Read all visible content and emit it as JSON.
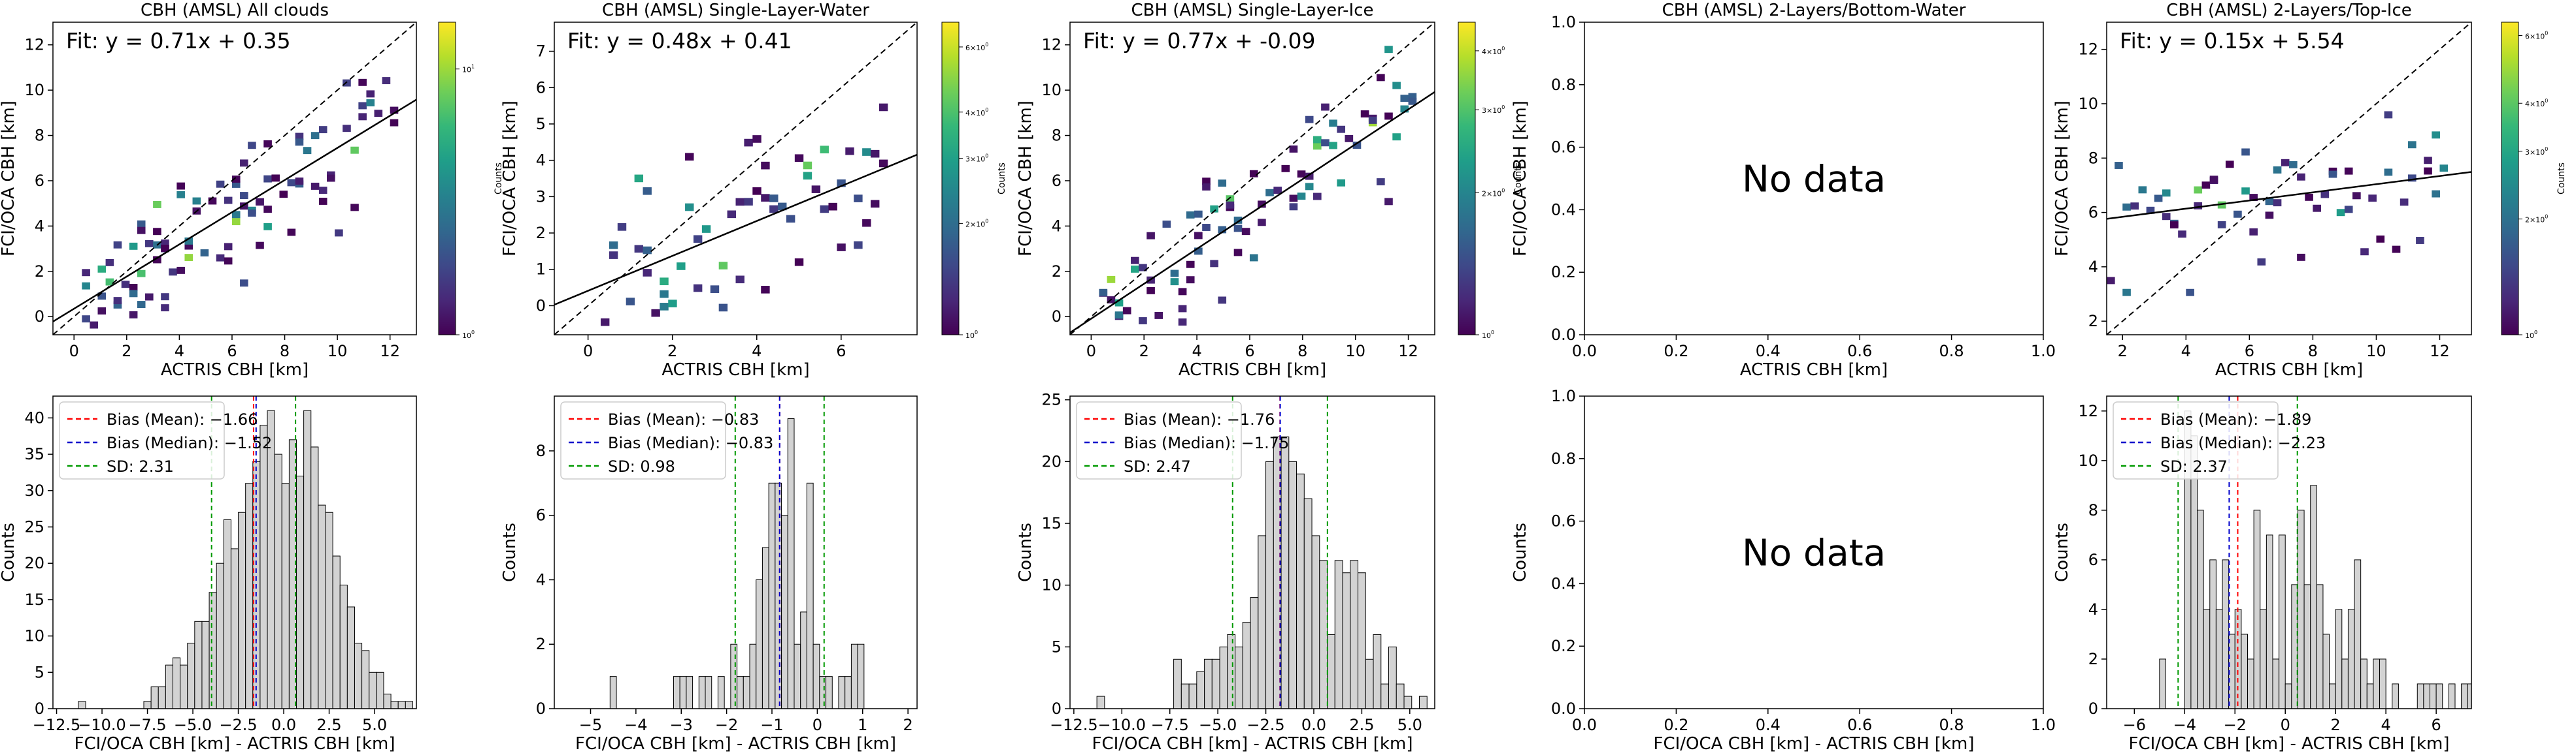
{
  "chart_data": [
    {
      "type": "heatmap",
      "title": "CBH (AMSL) All clouds",
      "xlabel": "ACTRIS CBH [km]",
      "ylabel": "FCI/OCA CBH [km]",
      "xlim": [
        -0.8,
        13.0
      ],
      "ylim": [
        -0.8,
        13.0
      ],
      "xticks": [
        0,
        2,
        4,
        6,
        8,
        10,
        12
      ],
      "yticks": [
        0,
        2,
        4,
        6,
        8,
        10,
        12
      ],
      "fit_label": "Fit: y = 0.71x + 0.35",
      "fit": {
        "slope": 0.71,
        "intercept": 0.35
      },
      "one_to_one_line": true,
      "colorbar": {
        "label": "Counts",
        "scale": "log",
        "min": 1,
        "max": 15,
        "tick_labels": [
          "10^0",
          "10^1"
        ],
        "tick_values": [
          1,
          10
        ]
      },
      "cells_density": 0.6,
      "cell_w": 0.3,
      "cell_h": 0.3,
      "seed": 11
    },
    {
      "type": "heatmap",
      "title": "CBH (AMSL) Single-Layer-Water",
      "xlabel": "ACTRIS CBH [km]",
      "ylabel": "FCI/OCA CBH [km]",
      "xlim": [
        -0.8,
        7.8
      ],
      "ylim": [
        -0.8,
        7.8
      ],
      "xticks": [
        0,
        2,
        4,
        6
      ],
      "yticks": [
        0,
        1,
        2,
        3,
        4,
        5,
        6,
        7
      ],
      "fit_label": "Fit: y = 0.48x + 0.41",
      "fit": {
        "slope": 0.48,
        "intercept": 0.41
      },
      "one_to_one_line": true,
      "colorbar": {
        "label": "Counts",
        "scale": "log",
        "min": 1,
        "max": 7,
        "tick_labels": [
          "10^0",
          "2×10^0",
          "3×10^0",
          "4×10^0",
          "6×10^0"
        ],
        "tick_values": [
          1,
          2,
          3,
          4,
          6
        ]
      },
      "cells_density": 0.35,
      "cell_w": 0.2,
      "cell_h": 0.2,
      "seed": 23
    },
    {
      "type": "heatmap",
      "title": "CBH (AMSL) Single-Layer-Ice",
      "xlabel": "ACTRIS CBH [km]",
      "ylabel": "FCI/OCA CBH [km]",
      "xlim": [
        -0.8,
        13.0
      ],
      "ylim": [
        -0.8,
        13.0
      ],
      "xticks": [
        0,
        2,
        4,
        6,
        8,
        10,
        12
      ],
      "yticks": [
        0,
        2,
        4,
        6,
        8,
        10,
        12
      ],
      "fit_label": "Fit: y = 0.77x + -0.09",
      "fit": {
        "slope": 0.77,
        "intercept": -0.09
      },
      "one_to_one_line": true,
      "colorbar": {
        "label": "Counts",
        "scale": "log",
        "min": 1,
        "max": 4.6,
        "tick_labels": [
          "10^0",
          "2×10^0",
          "3×10^0",
          "4×10^0"
        ],
        "tick_values": [
          1,
          2,
          3,
          4
        ]
      },
      "cells_density": 0.45,
      "cell_w": 0.3,
      "cell_h": 0.3,
      "seed": 37
    },
    {
      "type": "heatmap",
      "title": "CBH (AMSL) 2-Layers/Bottom-Water",
      "xlabel": "ACTRIS CBH [km]",
      "ylabel": "FCI/OCA CBH [km]",
      "xlim": [
        0.0,
        1.0
      ],
      "ylim": [
        0.0,
        1.0
      ],
      "xticks": [
        "0.0",
        "0.2",
        "0.4",
        "0.6",
        "0.8",
        "1.0"
      ],
      "yticks": [
        "0.0",
        "0.2",
        "0.4",
        "0.6",
        "0.8",
        "1.0"
      ],
      "no_data": "No data"
    },
    {
      "type": "heatmap",
      "title": "CBH (AMSL) 2-Layers/Top-Ice",
      "xlabel": "ACTRIS CBH [km]",
      "ylabel": "FCI/OCA CBH [km]",
      "xlim": [
        1.5,
        13.0
      ],
      "ylim": [
        1.5,
        13.0
      ],
      "xticks": [
        2,
        4,
        6,
        8,
        10,
        12
      ],
      "yticks": [
        2,
        4,
        6,
        8,
        10,
        12
      ],
      "fit_label": "Fit: y = 0.15x + 5.54",
      "fit": {
        "slope": 0.15,
        "intercept": 5.54
      },
      "one_to_one_line": true,
      "colorbar": {
        "label": "Counts",
        "scale": "log",
        "min": 1,
        "max": 6.5,
        "tick_labels": [
          "10^0",
          "2×10^0",
          "3×10^0",
          "4×10^0",
          "6×10^0"
        ],
        "tick_values": [
          1,
          2,
          3,
          4,
          6
        ]
      },
      "cells_density": 0.25,
      "cell_w": 0.25,
      "cell_h": 0.25,
      "seed": 51
    },
    {
      "type": "bar",
      "xlabel": "FCI/OCA CBH [km] - ACTRIS CBH [km]",
      "ylabel": "Counts",
      "xlim": [
        -12.7,
        7.3
      ],
      "ylim": [
        0,
        43
      ],
      "xticks": [
        "-12.5",
        "-10.0",
        "-7.5",
        "-5.0",
        "-2.5",
        "0.0",
        "2.5",
        "5.0"
      ],
      "yticks": [
        0,
        5,
        10,
        15,
        20,
        25,
        30,
        35,
        40
      ],
      "bin_width": 0.4,
      "bin_start": -11.3,
      "values": [
        1,
        0,
        0,
        0,
        0,
        0,
        0,
        0,
        0,
        1,
        3,
        3,
        6,
        7,
        6,
        9,
        12,
        12,
        16,
        20,
        26,
        22,
        27,
        31,
        34,
        39,
        41,
        35,
        31,
        37,
        32,
        41,
        36,
        28,
        27,
        21,
        17,
        14,
        9,
        8,
        5,
        5,
        2,
        1,
        1,
        1,
        0,
        0,
        0,
        0,
        1
      ],
      "bias_mean": -1.66,
      "bias_median": -1.52,
      "sd": 2.31,
      "legend": [
        "Bias (Mean): -1.66",
        "Bias (Median): -1.52",
        "SD: 2.31"
      ]
    },
    {
      "type": "bar",
      "xlabel": "FCI/OCA CBH [km] - ACTRIS CBH [km]",
      "ylabel": "Counts",
      "xlim": [
        -5.8,
        2.2
      ],
      "ylim": [
        0,
        9.7
      ],
      "xticks": [
        -5,
        -4,
        -3,
        -2,
        -1,
        0,
        1,
        2
      ],
      "yticks": [
        0,
        2,
        4,
        6,
        8
      ],
      "bin_width": 0.14,
      "bin_start": -4.57,
      "values": [
        1,
        0,
        0,
        0,
        0,
        0,
        0,
        0,
        0,
        0,
        1,
        1,
        1,
        0,
        1,
        1,
        0,
        1,
        0,
        2,
        1,
        1,
        2,
        4,
        5,
        7,
        7,
        6,
        9,
        2,
        3,
        7,
        2,
        1,
        1,
        0,
        1,
        1,
        2,
        2
      ],
      "bias_mean": -0.83,
      "bias_median": -0.83,
      "sd": 0.98,
      "legend": [
        "Bias (Mean): -0.83",
        "Bias (Median): -0.83",
        "SD: 0.98"
      ]
    },
    {
      "type": "bar",
      "xlabel": "FCI/OCA CBH [km] - ACTRIS CBH [km]",
      "ylabel": "Counts",
      "xlim": [
        -12.7,
        6.3
      ],
      "ylim": [
        0,
        25.3
      ],
      "xticks": [
        "-12.5",
        "-10.0",
        "-7.5",
        "-5.0",
        "-2.5",
        "0.0",
        "2.5",
        "5.0"
      ],
      "yticks": [
        0,
        5,
        10,
        15,
        20,
        25
      ],
      "bin_width": 0.4,
      "bin_start": -11.3,
      "values": [
        1,
        0,
        0,
        0,
        0,
        0,
        0,
        0,
        0,
        0,
        4,
        2,
        2,
        3,
        4,
        4,
        5,
        6,
        5,
        7,
        9,
        14,
        20,
        22,
        22,
        20,
        19,
        17,
        14,
        12,
        6,
        12,
        11,
        12,
        11,
        4,
        6,
        2,
        5,
        2,
        1,
        0,
        1,
        0,
        0,
        0,
        0,
        1
      ],
      "bias_mean": -1.76,
      "bias_median": -1.75,
      "sd": 2.47,
      "legend": [
        "Bias (Mean): -1.76",
        "Bias (Median): -1.75",
        "SD: 2.47"
      ]
    },
    {
      "type": "bar",
      "xlabel": "FCI/OCA CBH [km] - ACTRIS CBH [km]",
      "ylabel": "Counts",
      "xlim": [
        0.0,
        1.0
      ],
      "ylim": [
        0.0,
        1.0
      ],
      "xticks": [
        "0.0",
        "0.2",
        "0.4",
        "0.6",
        "0.8",
        "1.0"
      ],
      "yticks": [
        "0.0",
        "0.2",
        "0.4",
        "0.6",
        "0.8",
        "1.0"
      ],
      "no_data": "No data"
    },
    {
      "type": "bar",
      "xlabel": "FCI/OCA CBH [km] - ACTRIS CBH [km]",
      "ylabel": "Counts",
      "xlim": [
        -7.1,
        7.4
      ],
      "ylim": [
        0,
        12.6
      ],
      "xticks": [
        -6,
        -4,
        -2,
        0,
        2,
        4,
        6
      ],
      "yticks": [
        0,
        2,
        4,
        6,
        8,
        10,
        12
      ],
      "bin_width": 0.25,
      "bin_start": -5.0,
      "values": [
        2,
        0,
        0,
        0,
        12,
        11,
        8,
        4,
        6,
        4,
        6,
        3,
        4,
        3,
        2,
        8,
        4,
        7,
        2,
        7,
        1,
        5,
        8,
        5,
        9,
        5,
        3,
        1,
        4,
        2,
        4,
        6,
        2,
        1,
        2,
        2,
        0,
        1,
        0,
        0,
        0,
        1,
        1,
        1,
        1,
        0,
        1,
        0,
        1,
        1
      ],
      "bias_mean": -1.89,
      "bias_median": -2.23,
      "sd": 2.37,
      "legend": [
        "Bias (Mean): -1.89",
        "Bias (Median): -2.23",
        "SD: 2.37"
      ]
    }
  ]
}
